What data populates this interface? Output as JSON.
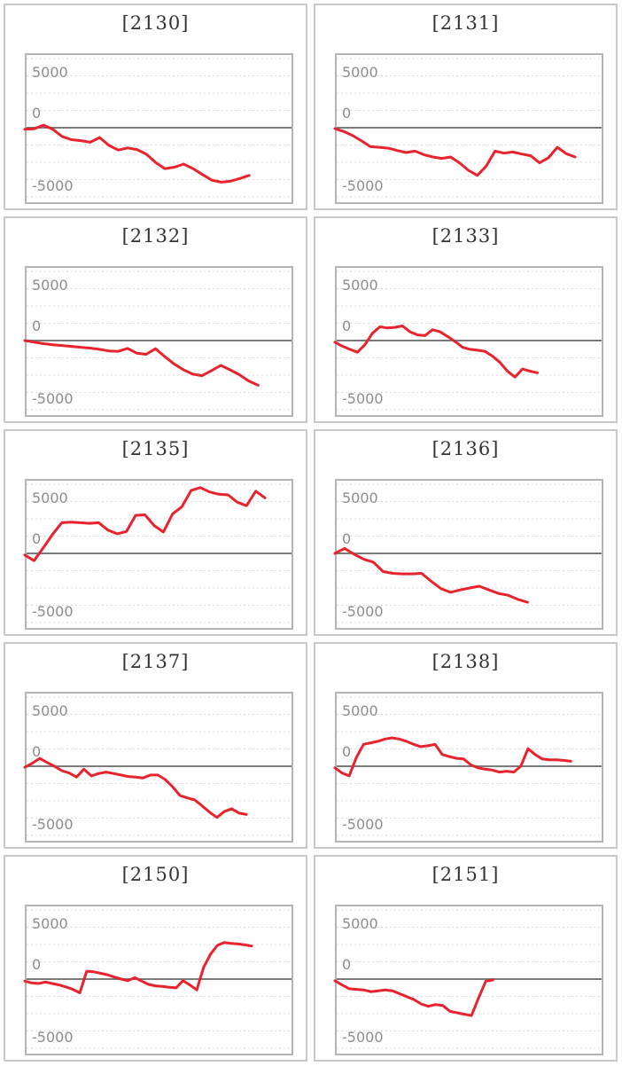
{
  "axis": {
    "tick_labels": [
      "5000",
      "0",
      "-5000"
    ],
    "tick_values": [
      5000,
      0,
      -5000
    ],
    "ylim": [
      -7100,
      7100
    ],
    "grid": "dotted-horizontal"
  },
  "style": {
    "line_color": "#e8232d",
    "grid_color": "#d8d8d8",
    "zero_line_color": "#7a7a7a",
    "plot_border_color": "#b4b4b4",
    "card_border_color": "#c8c8c8",
    "tick_label_color": "#8c8c8c",
    "title_color": "#333333",
    "background": "#ffffff"
  },
  "chart_data": [
    {
      "type": "line",
      "title": "[2130]",
      "end_frac": 0.84,
      "values": [
        -150,
        -100,
        250,
        -150,
        -850,
        -1150,
        -1250,
        -1400,
        -950,
        -1700,
        -2150,
        -1950,
        -2100,
        -2550,
        -3350,
        -3950,
        -3800,
        -3500,
        -3950,
        -4500,
        -5050,
        -5250,
        -5150,
        -4900,
        -4600
      ]
    },
    {
      "type": "line",
      "title": "[2131]",
      "end_frac": 0.9,
      "values": [
        -85,
        -370,
        -760,
        -1270,
        -1830,
        -1890,
        -1975,
        -2200,
        -2395,
        -2255,
        -2600,
        -2820,
        -2960,
        -2820,
        -3385,
        -4100,
        -4600,
        -3700,
        -2255,
        -2455,
        -2340,
        -2540,
        -2700,
        -3385,
        -2900,
        -1890,
        -2500,
        -2820
      ]
    },
    {
      "type": "line",
      "title": "[2132]",
      "end_frac": 0.874,
      "values": [
        0,
        -150,
        -300,
        -400,
        -480,
        -560,
        -650,
        -730,
        -850,
        -1000,
        -1040,
        -760,
        -1210,
        -1325,
        -790,
        -1550,
        -2255,
        -2820,
        -3240,
        -3385,
        -2900,
        -2395,
        -2820,
        -3300,
        -3900,
        -4310
      ]
    },
    {
      "type": "line",
      "title": "[2133]",
      "end_frac": 0.758,
      "values": [
        -150,
        -550,
        -850,
        -1130,
        -400,
        700,
        1325,
        1210,
        1270,
        1410,
        850,
        550,
        480,
        1040,
        850,
        400,
        -85,
        -650,
        -850,
        -930,
        -1040,
        -1500,
        -2115,
        -2960,
        -3525,
        -2735,
        -2960,
        -3100
      ]
    },
    {
      "type": "line",
      "title": "[2135]",
      "end_frac": 0.9,
      "values": [
        -150,
        -700,
        550,
        1830,
        2960,
        3020,
        2960,
        2900,
        2960,
        2250,
        1890,
        2115,
        3670,
        3720,
        2680,
        2060,
        3800,
        4500,
        6060,
        6345,
        5920,
        5700,
        5640,
        4930,
        4600,
        6000,
        5350
      ]
    },
    {
      "type": "line",
      "title": "[2136]",
      "end_frac": 0.72,
      "values": [
        0,
        480,
        -85,
        -560,
        -850,
        -1750,
        -1920,
        -1975,
        -1975,
        -1920,
        -2680,
        -3385,
        -3750,
        -3525,
        -3330,
        -3160,
        -3525,
        -3865,
        -4030,
        -4425,
        -4710
      ]
    },
    {
      "type": "line",
      "title": "[2137]",
      "end_frac": 0.83,
      "values": [
        -100,
        280,
        760,
        370,
        0,
        -425,
        -650,
        -1040,
        -280,
        -930,
        -700,
        -560,
        -700,
        -850,
        -990,
        -1040,
        -1130,
        -850,
        -850,
        -1270,
        -1975,
        -2820,
        -3050,
        -3245,
        -3810,
        -4430,
        -4935,
        -4370,
        -4090,
        -4510,
        -4650
      ]
    },
    {
      "type": "line",
      "title": "[2138]",
      "end_frac": 0.884,
      "values": [
        -150,
        -650,
        -930,
        850,
        2115,
        2255,
        2400,
        2620,
        2735,
        2620,
        2400,
        2115,
        1890,
        1975,
        2115,
        1130,
        930,
        760,
        705,
        140,
        -150,
        -280,
        -370,
        -560,
        -480,
        -560,
        0,
        1690,
        1130,
        705,
        620,
        620,
        560,
        480
      ]
    },
    {
      "type": "line",
      "title": "[2150]",
      "end_frac": 0.85,
      "values": [
        -200,
        -370,
        -425,
        -280,
        -425,
        -560,
        -760,
        -990,
        -1325,
        760,
        705,
        560,
        420,
        200,
        0,
        -150,
        140,
        -200,
        -510,
        -650,
        -700,
        -790,
        -850,
        -150,
        -560,
        -1040,
        1130,
        2400,
        3245,
        3525,
        3440,
        3385,
        3300,
        3190
      ]
    },
    {
      "type": "line",
      "title": "[2151]",
      "end_frac": 0.59,
      "values": [
        -150,
        -560,
        -930,
        -990,
        -1040,
        -1210,
        -1130,
        -1040,
        -1130,
        -1410,
        -1690,
        -1975,
        -2395,
        -2620,
        -2455,
        -2540,
        -3100,
        -3245,
        -3385,
        -3525,
        -1800,
        -200,
        -85
      ]
    }
  ]
}
